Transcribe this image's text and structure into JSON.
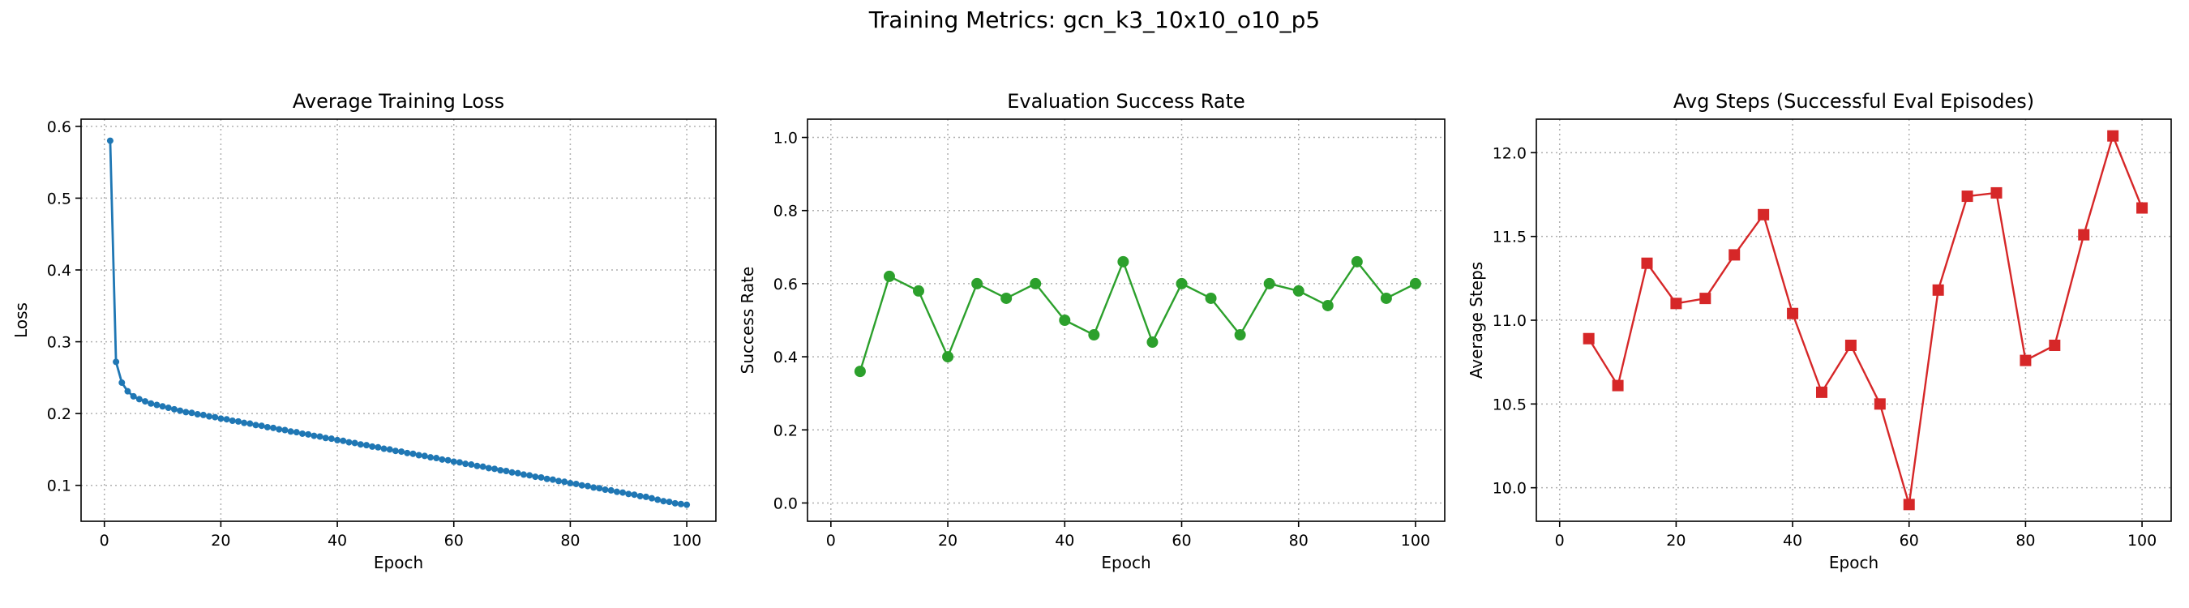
{
  "title": "Training Metrics: gcn_k3_10x10_o10_p5",
  "chart_data": [
    {
      "type": "line",
      "title": "Average Training Loss",
      "xlabel": "Epoch",
      "ylabel": "Loss",
      "xlim": [
        -4,
        105
      ],
      "ylim": [
        0.05,
        0.61
      ],
      "xticks": [
        0,
        20,
        40,
        60,
        80,
        100
      ],
      "yticks": [
        0.1,
        0.2,
        0.3,
        0.4,
        0.5,
        0.6
      ],
      "grid": true,
      "color": "#1f77b4",
      "marker": "circle-small",
      "x": [
        1,
        2,
        3,
        4,
        5,
        6,
        7,
        8,
        9,
        10,
        11,
        12,
        13,
        14,
        15,
        16,
        17,
        18,
        19,
        20,
        21,
        22,
        23,
        24,
        25,
        26,
        27,
        28,
        29,
        30,
        31,
        32,
        33,
        34,
        35,
        36,
        37,
        38,
        39,
        40,
        41,
        42,
        43,
        44,
        45,
        46,
        47,
        48,
        49,
        50,
        51,
        52,
        53,
        54,
        55,
        56,
        57,
        58,
        59,
        60,
        61,
        62,
        63,
        64,
        65,
        66,
        67,
        68,
        69,
        70,
        71,
        72,
        73,
        74,
        75,
        76,
        77,
        78,
        79,
        80,
        81,
        82,
        83,
        84,
        85,
        86,
        87,
        88,
        89,
        90,
        91,
        92,
        93,
        94,
        95,
        96,
        97,
        98,
        99,
        100
      ],
      "y": [
        0.58,
        0.272,
        0.243,
        0.231,
        0.224,
        0.22,
        0.217,
        0.214,
        0.212,
        0.21,
        0.208,
        0.206,
        0.204,
        0.202,
        0.201,
        0.199,
        0.198,
        0.196,
        0.195,
        0.193,
        0.192,
        0.19,
        0.189,
        0.187,
        0.186,
        0.184,
        0.183,
        0.181,
        0.18,
        0.178,
        0.177,
        0.175,
        0.174,
        0.172,
        0.171,
        0.169,
        0.168,
        0.166,
        0.165,
        0.163,
        0.162,
        0.16,
        0.159,
        0.157,
        0.156,
        0.154,
        0.153,
        0.151,
        0.15,
        0.148,
        0.147,
        0.145,
        0.144,
        0.142,
        0.141,
        0.139,
        0.138,
        0.136,
        0.135,
        0.133,
        0.132,
        0.13,
        0.129,
        0.127,
        0.126,
        0.124,
        0.123,
        0.121,
        0.12,
        0.118,
        0.117,
        0.115,
        0.114,
        0.112,
        0.111,
        0.109,
        0.108,
        0.106,
        0.105,
        0.103,
        0.102,
        0.1,
        0.099,
        0.097,
        0.096,
        0.094,
        0.093,
        0.091,
        0.09,
        0.088,
        0.087,
        0.085,
        0.084,
        0.082,
        0.08,
        0.078,
        0.077,
        0.075,
        0.074,
        0.073
      ]
    },
    {
      "type": "line",
      "title": "Evaluation Success Rate",
      "xlabel": "Epoch",
      "ylabel": "Success Rate",
      "xlim": [
        -4,
        105
      ],
      "ylim": [
        -0.05,
        1.05
      ],
      "xticks": [
        0,
        20,
        40,
        60,
        80,
        100
      ],
      "yticks": [
        0.0,
        0.2,
        0.4,
        0.6,
        0.8,
        1.0
      ],
      "grid": true,
      "color": "#2ca02c",
      "marker": "circle",
      "x": [
        5,
        10,
        15,
        20,
        25,
        30,
        35,
        40,
        45,
        50,
        55,
        60,
        65,
        70,
        75,
        80,
        85,
        90,
        95,
        100
      ],
      "y": [
        0.36,
        0.62,
        0.58,
        0.4,
        0.6,
        0.56,
        0.6,
        0.5,
        0.46,
        0.66,
        0.44,
        0.6,
        0.56,
        0.46,
        0.6,
        0.58,
        0.54,
        0.66,
        0.56,
        0.6
      ]
    },
    {
      "type": "line",
      "title": "Avg Steps (Successful Eval Episodes)",
      "xlabel": "Epoch",
      "ylabel": "Average Steps",
      "xlim": [
        -4,
        105
      ],
      "ylim": [
        9.8,
        12.2
      ],
      "xticks": [
        0,
        20,
        40,
        60,
        80,
        100
      ],
      "yticks": [
        10.0,
        10.5,
        11.0,
        11.5,
        12.0
      ],
      "grid": true,
      "color": "#d62728",
      "marker": "square",
      "x": [
        5,
        10,
        15,
        20,
        25,
        30,
        35,
        40,
        45,
        50,
        55,
        60,
        65,
        70,
        75,
        80,
        85,
        90,
        95,
        100
      ],
      "y": [
        10.89,
        10.61,
        11.34,
        11.1,
        11.13,
        11.39,
        11.63,
        11.04,
        10.57,
        10.85,
        10.5,
        9.9,
        11.18,
        11.74,
        11.76,
        10.76,
        10.85,
        11.51,
        12.1,
        11.67
      ]
    }
  ]
}
